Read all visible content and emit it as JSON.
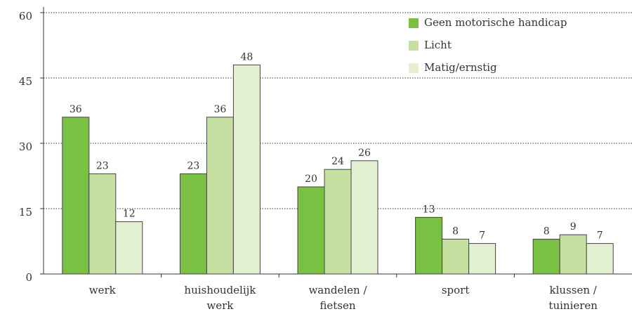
{
  "chart_data": {
    "type": "bar",
    "categories": [
      "werk",
      "huishoudelijk\nwerk",
      "wandelen /\nfietsen",
      "sport",
      "klussen /\ntuinieren"
    ],
    "series": [
      {
        "name": "Geen motorische handicap",
        "color": "#7ac143",
        "values": [
          36,
          23,
          20,
          13,
          8
        ]
      },
      {
        "name": "Licht",
        "color": "#c5e0a0",
        "values": [
          23,
          36,
          24,
          8,
          9
        ]
      },
      {
        "name": "Matig/ernstig",
        "color": "#e3f0d2",
        "values": [
          12,
          48,
          26,
          7,
          7
        ]
      }
    ],
    "ylim": [
      0,
      60
    ],
    "yticks": [
      0,
      15,
      30,
      45,
      60
    ],
    "grid": true,
    "legend": "top-right"
  }
}
